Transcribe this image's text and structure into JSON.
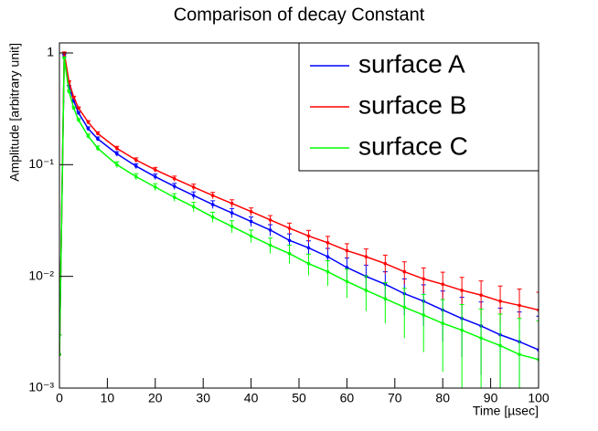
{
  "chart_data": {
    "type": "line",
    "title": "Comparison of decay Constant",
    "xlabel": "Time [µsec]",
    "ylabel": "Amplitude [arbitrary unit]",
    "log_y": true,
    "legend": "top-right",
    "xlim": [
      0,
      100
    ],
    "xticks": [
      0,
      10,
      20,
      30,
      40,
      50,
      60,
      70,
      80,
      90,
      100
    ],
    "ylim": [
      0.001,
      1.23
    ],
    "yticks": [
      {
        "value": 0.001,
        "label": "10⁻³"
      },
      {
        "value": 0.01,
        "label": "10⁻²"
      },
      {
        "value": 0.1,
        "label": "10⁻¹"
      },
      1
    ],
    "x": [
      0,
      1,
      2,
      3,
      4,
      6,
      8,
      12,
      16,
      20,
      24,
      28,
      32,
      36,
      40,
      44,
      48,
      52,
      56,
      60,
      64,
      68,
      72,
      76,
      80,
      84,
      88,
      92,
      96,
      100
    ],
    "series": [
      {
        "name": "surface A",
        "color": "#0000ff",
        "values": [
          0.002,
          0.95,
          0.5,
          0.37,
          0.29,
          0.21,
          0.17,
          0.125,
          0.097,
          0.078,
          0.064,
          0.053,
          0.044,
          0.037,
          0.031,
          0.026,
          0.021,
          0.018,
          0.015,
          0.012,
          0.01,
          0.0085,
          0.007,
          0.006,
          0.005,
          0.0042,
          0.0036,
          0.003,
          0.0026,
          0.0022
        ],
        "errors": [
          0.001,
          0.02,
          0.012,
          0.01,
          0.009,
          0.008,
          0.007,
          0.006,
          0.005,
          0.0045,
          0.004,
          0.004,
          0.0035,
          0.0035,
          0.003,
          0.003,
          0.003,
          0.0028,
          0.0028,
          0.0026,
          0.0026,
          0.0025,
          0.0025,
          0.0024,
          0.0024,
          0.0023,
          0.0023,
          0.0022,
          0.0022,
          0.0022
        ]
      },
      {
        "name": "surface B",
        "color": "#ff0000",
        "values": [
          0.002,
          1.0,
          0.55,
          0.4,
          0.32,
          0.24,
          0.19,
          0.14,
          0.11,
          0.09,
          0.075,
          0.063,
          0.053,
          0.045,
          0.038,
          0.032,
          0.027,
          0.023,
          0.02,
          0.017,
          0.015,
          0.013,
          0.011,
          0.0095,
          0.0085,
          0.0075,
          0.0068,
          0.006,
          0.0055,
          0.005
        ],
        "errors": [
          0.001,
          0.02,
          0.012,
          0.01,
          0.009,
          0.008,
          0.007,
          0.006,
          0.005,
          0.0045,
          0.004,
          0.004,
          0.0035,
          0.0035,
          0.003,
          0.003,
          0.003,
          0.0028,
          0.0028,
          0.0026,
          0.0026,
          0.0025,
          0.0025,
          0.0024,
          0.0024,
          0.0023,
          0.0023,
          0.0022,
          0.0022,
          0.0022
        ]
      },
      {
        "name": "surface C",
        "color": "#00ff00",
        "values": [
          0.002,
          0.9,
          0.45,
          0.32,
          0.25,
          0.18,
          0.14,
          0.1,
          0.078,
          0.063,
          0.051,
          0.042,
          0.034,
          0.028,
          0.023,
          0.019,
          0.016,
          0.013,
          0.011,
          0.009,
          0.0075,
          0.0063,
          0.0053,
          0.0045,
          0.0038,
          0.0033,
          0.0028,
          0.0024,
          0.002,
          0.0018
        ],
        "errors": [
          0.001,
          0.02,
          0.012,
          0.01,
          0.009,
          0.008,
          0.007,
          0.006,
          0.005,
          0.0045,
          0.004,
          0.004,
          0.0035,
          0.0035,
          0.003,
          0.003,
          0.003,
          0.0028,
          0.0028,
          0.0026,
          0.0026,
          0.0025,
          0.0025,
          0.0024,
          0.0024,
          0.0023,
          0.0023,
          0.0022,
          0.0022,
          0.0022
        ]
      }
    ]
  }
}
